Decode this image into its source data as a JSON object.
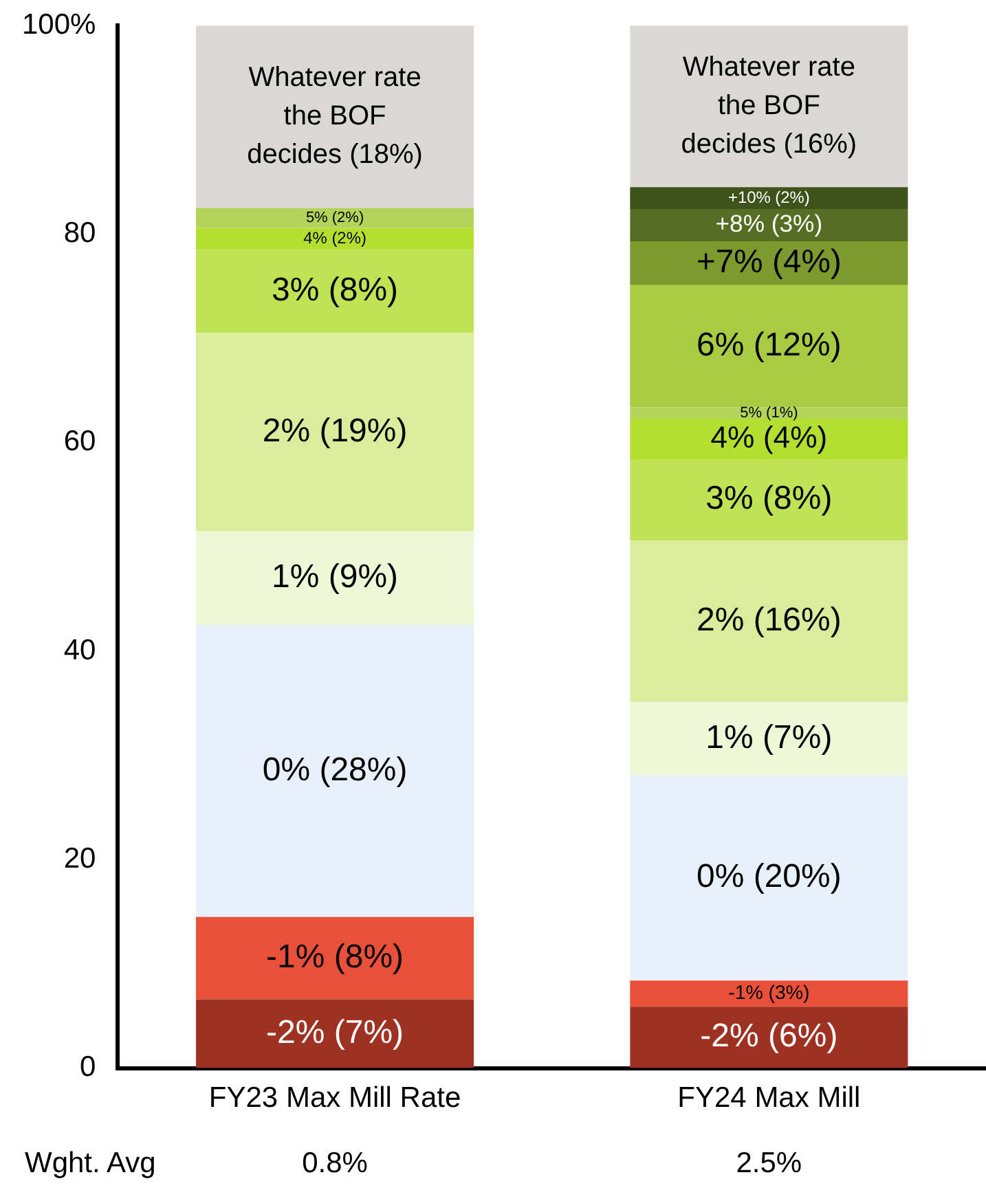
{
  "chart_data": {
    "type": "bar",
    "stacked": true,
    "categories": [
      "FY23 Max Mill Rate",
      "FY24 Max Mill"
    ],
    "series": [
      {
        "color": "#9e3122",
        "values": [
          6.6,
          5.9
        ],
        "value_labels": [
          "-2% (7%)",
          "-2% (6%)"
        ]
      },
      {
        "color": "#e8503a",
        "values": [
          7.9,
          2.5
        ],
        "value_labels": [
          "-1% (8%)",
          "-1% (3%)"
        ]
      },
      {
        "color": "#e8f1fb",
        "values": [
          28,
          19.7
        ],
        "value_labels": [
          "0% (28%)",
          "0% (20%)"
        ]
      },
      {
        "color": "#eef7d8",
        "values": [
          9,
          7
        ],
        "value_labels": [
          "1% (9%)",
          "1% (7%)"
        ]
      },
      {
        "color": "#dbed9d",
        "values": [
          19,
          15.5
        ],
        "value_labels": [
          "2% (19%)",
          "2% (16%)"
        ]
      },
      {
        "color": "#bfe354",
        "values": [
          8,
          7.8
        ],
        "value_labels": [
          "3% (8%)",
          "3% (8%)"
        ]
      },
      {
        "color": "#b3df30",
        "values": [
          2.1,
          3.9
        ],
        "value_labels": [
          "4% (2%)",
          "4% (4%)"
        ]
      },
      {
        "color": "#b2d45a",
        "values": [
          1.9,
          1.1
        ],
        "value_labels": [
          "5% (2%)",
          "5% (1%)"
        ]
      },
      {
        "color": "#a8cb42",
        "values": [
          null,
          11.7
        ],
        "value_labels": [
          null,
          "6% (12%)"
        ]
      },
      {
        "color": "#7d9a2e",
        "values": [
          null,
          4.2
        ],
        "value_labels": [
          null,
          "+7% (4%)"
        ]
      },
      {
        "color": "#556e23",
        "values": [
          null,
          3.1
        ],
        "value_labels": [
          null,
          "+8% (3%)"
        ]
      },
      {
        "color": "#3e5319",
        "values": [
          null,
          2.1
        ],
        "value_labels": [
          null,
          "+10% (2%)"
        ]
      },
      {
        "color": "#dad8d5",
        "values": [
          17.5,
          15.5
        ],
        "value_labels": [
          "Whatever rate the BOF decides (18%)",
          "Whatever rate the BOF decides (16%)"
        ]
      }
    ],
    "ylim": [
      0,
      100
    ],
    "yticks": [
      0,
      20,
      40,
      60,
      80,
      {
        "value": 100,
        "label": "100%"
      }
    ],
    "grid": false,
    "legend": false,
    "annotations": [
      "Wght. Avg",
      "0.8%",
      "2.5%"
    ]
  }
}
